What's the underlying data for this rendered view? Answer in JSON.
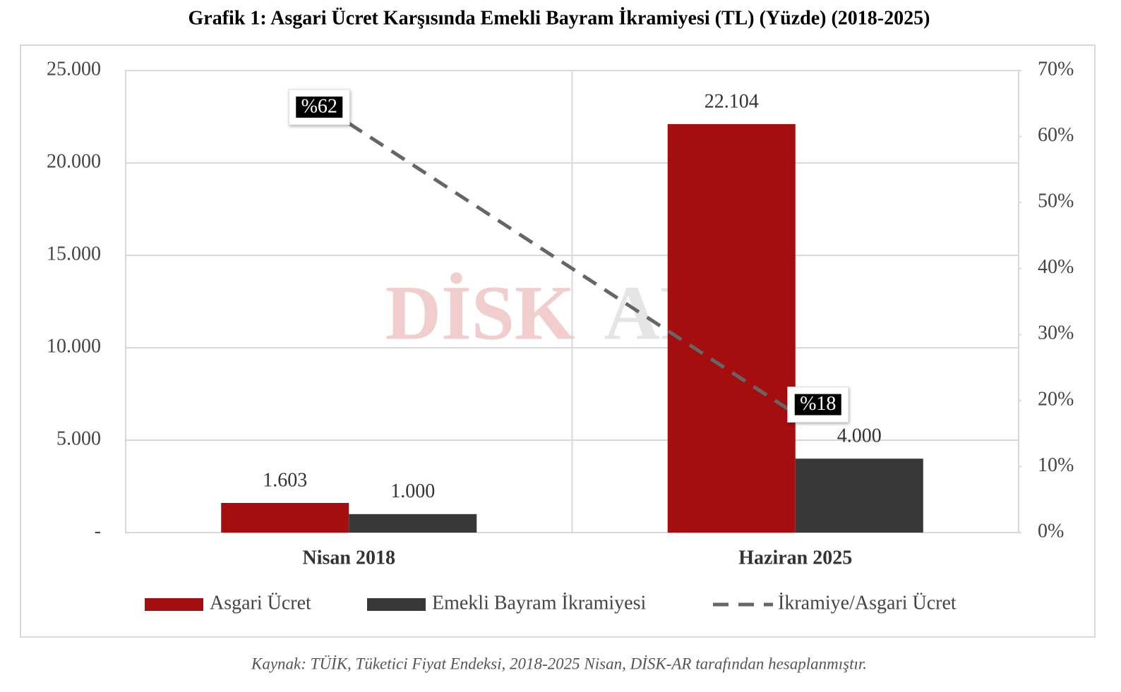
{
  "chart_data": {
    "type": "bar",
    "title": "Grafik 1: Asgari Ücret Karşısında Emekli Bayram İkramiyesi (TL) (Yüzde) (2018-2025)",
    "categories": [
      "Nisan 2018",
      "Haziran 2025"
    ],
    "series": [
      {
        "name": "Asgari Ücret",
        "color": "#a50e0e",
        "values": [
          1603,
          22104
        ],
        "value_labels": [
          "1.603",
          "22.104"
        ]
      },
      {
        "name": "Emekli Bayram İkramiyesi",
        "color": "#383838",
        "values": [
          1000,
          4000
        ],
        "value_labels": [
          "1.000",
          "4.000"
        ]
      },
      {
        "name": "İkramiye/Asgari Ücret",
        "color": "#666666",
        "type": "line",
        "dashed": true,
        "axis": "y2",
        "values": [
          62,
          18
        ],
        "value_labels": [
          "%62",
          "%18"
        ]
      }
    ],
    "ylim": [
      0,
      25000
    ],
    "yticks": [
      {
        "value": 0,
        "label": "-"
      },
      {
        "value": 5000,
        "label": "5.000"
      },
      {
        "value": 10000,
        "label": "10.000"
      },
      {
        "value": 15000,
        "label": "15.000"
      },
      {
        "value": 20000,
        "label": "20.000"
      },
      {
        "value": 25000,
        "label": "25.000"
      }
    ],
    "y2lim": [
      0,
      70
    ],
    "y2ticks": [
      {
        "value": 0,
        "label": "0%"
      },
      {
        "value": 10,
        "label": "10%"
      },
      {
        "value": 20,
        "label": "20%"
      },
      {
        "value": 30,
        "label": "30%"
      },
      {
        "value": 40,
        "label": "40%"
      },
      {
        "value": 50,
        "label": "50%"
      },
      {
        "value": 60,
        "label": "60%"
      },
      {
        "value": 70,
        "label": "70%"
      }
    ],
    "grid": true,
    "legend": "bottom",
    "watermark": [
      "DİSK",
      "AR"
    ],
    "source": "Kaynak: TÜİK, Tüketici Fiyat Endeksi, 2018-2025 Nisan, DİSK-AR tarafından hesaplanmıştır."
  }
}
